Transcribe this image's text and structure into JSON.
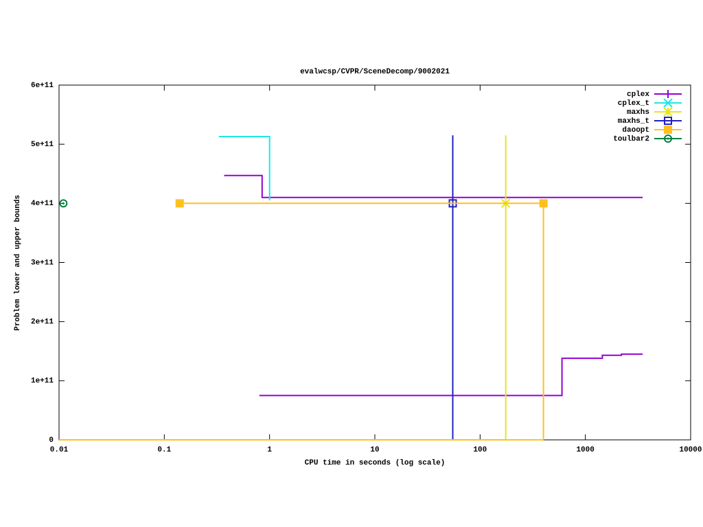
{
  "chart_data": {
    "type": "line",
    "title": "evalwcsp/CVPR/SceneDecomp/9002021",
    "x_label": "CPU time in seconds (log scale)",
    "y_label": "Problem lower and upper bounds",
    "x_log_scale": true,
    "xlim": [
      0.01,
      10000
    ],
    "xticks": [
      0.01,
      0.1,
      1,
      10,
      100,
      1000,
      10000
    ],
    "ylim": [
      0,
      600000000000
    ],
    "yticks": [
      0,
      {
        "value": 100000000000,
        "label": "1e+11"
      },
      {
        "value": 200000000000,
        "label": "2e+11"
      },
      {
        "value": 300000000000,
        "label": "3e+11"
      },
      {
        "value": 400000000000,
        "label": "4e+11"
      },
      {
        "value": 500000000000,
        "label": "5e+11"
      },
      {
        "value": 600000000000,
        "label": "6e+11"
      }
    ],
    "legend_position": "top-right",
    "series": [
      {
        "name": "cplex",
        "color": "#9400d3",
        "marker": "plus",
        "x": [
          0.37,
          0.85,
          0.85,
          3500,
          null,
          0.8,
          600,
          600,
          1450,
          1450,
          2200,
          2200,
          3500
        ],
        "values": [
          447000000000,
          447000000000,
          410000000000,
          410000000000,
          null,
          75000000000,
          75000000000,
          138000000000,
          138000000000,
          143000000000,
          143000000000,
          145000000000,
          145000000000
        ],
        "points": {
          "x": [],
          "values": []
        }
      },
      {
        "name": "cplex_t",
        "color": "#1ee6e6",
        "marker": "cross",
        "x": [
          0.33,
          1,
          1
        ],
        "values": [
          513000000000,
          513000000000,
          405000000000
        ],
        "points": {
          "x": [],
          "values": []
        }
      },
      {
        "name": "maxhs",
        "color": "#e6e61e",
        "marker": "star",
        "x": [
          175,
          175
        ],
        "values": [
          0,
          515000000000
        ],
        "points": {
          "x": [
            175
          ],
          "values": [
            400000000000
          ]
        }
      },
      {
        "name": "maxhs_t",
        "color": "#2020c0",
        "marker": "square",
        "x": [
          55,
          55
        ],
        "values": [
          0,
          515000000000
        ],
        "points": {
          "x": [
            55
          ],
          "values": [
            400000000000
          ]
        }
      },
      {
        "name": "daoopt",
        "color": "#ffc020",
        "marker": "filled-square",
        "x": [
          0.14,
          400,
          400,
          null,
          0.01,
          400
        ],
        "values": [
          400000000000,
          400000000000,
          0,
          null,
          0,
          0
        ],
        "points": {
          "x": [
            0.14,
            400
          ],
          "values": [
            400000000000,
            400000000000
          ]
        }
      },
      {
        "name": "toulbar2",
        "color": "#008040",
        "marker": "circle",
        "x": [],
        "values": [],
        "points": {
          "x": [
            0.011
          ],
          "values": [
            400000000000
          ]
        }
      }
    ]
  }
}
